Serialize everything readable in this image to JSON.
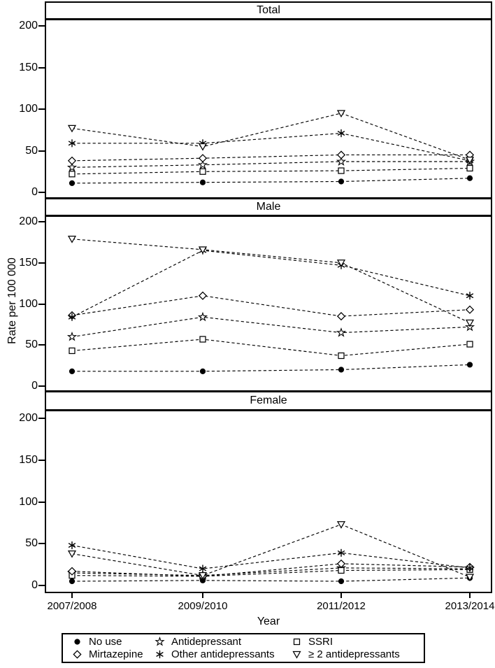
{
  "figure": {
    "ylabel": "Rate per 100 000",
    "xlabel": "Year",
    "background": "#ffffff",
    "line_color": "#000000",
    "line_style": "dashed"
  },
  "x_axis": {
    "label": "Year",
    "ticks": [
      "2007/2008",
      "2009/2010",
      "2011/2012",
      "2013/2014"
    ]
  },
  "chart_data": [
    {
      "type": "line",
      "title": "Total",
      "x": [
        "2007/2008",
        "2009/2010",
        "2011/2012",
        "2013/2014"
      ],
      "ylabel": "Rate per 100 000",
      "ylim": [
        0,
        210
      ],
      "yticks": [
        0,
        50,
        100,
        150,
        200
      ],
      "grid": false,
      "series": [
        {
          "name": "No use",
          "marker": "circle-filled",
          "values": [
            11,
            12,
            13,
            17
          ]
        },
        {
          "name": "Antidepressant",
          "marker": "star",
          "values": [
            30,
            33,
            37,
            37
          ]
        },
        {
          "name": "SSRI",
          "marker": "square",
          "values": [
            22,
            25,
            26,
            29
          ]
        },
        {
          "name": "Mirtazepine",
          "marker": "diamond",
          "values": [
            38,
            41,
            45,
            45
          ]
        },
        {
          "name": "Other antidepressants",
          "marker": "asterisk",
          "values": [
            59,
            59,
            71,
            38
          ]
        },
        {
          "name": "≥ 2 antidepressants",
          "marker": "triangle-down",
          "values": [
            77,
            55,
            95,
            39
          ]
        }
      ]
    },
    {
      "type": "line",
      "title": "Male",
      "x": [
        "2007/2008",
        "2009/2010",
        "2011/2012",
        "2013/2014"
      ],
      "ylabel": "Rate per 100 000",
      "ylim": [
        0,
        210
      ],
      "yticks": [
        0,
        50,
        100,
        150,
        200
      ],
      "grid": false,
      "series": [
        {
          "name": "No use",
          "marker": "circle-filled",
          "values": [
            18,
            18,
            20,
            26
          ]
        },
        {
          "name": "Antidepressant",
          "marker": "star",
          "values": [
            60,
            84,
            65,
            72
          ]
        },
        {
          "name": "SSRI",
          "marker": "square",
          "values": [
            43,
            57,
            37,
            51
          ]
        },
        {
          "name": "Mirtazepine",
          "marker": "diamond",
          "values": [
            86,
            110,
            85,
            93
          ]
        },
        {
          "name": "Other antidepressants",
          "marker": "asterisk",
          "values": [
            84,
            165,
            147,
            110
          ]
        },
        {
          "name": "≥ 2 antidepressants",
          "marker": "triangle-down",
          "values": [
            179,
            166,
            150,
            77
          ]
        }
      ]
    },
    {
      "type": "line",
      "title": "Female",
      "x": [
        "2007/2008",
        "2009/2010",
        "2011/2012",
        "2013/2014"
      ],
      "ylabel": "Rate per 100 000",
      "ylim": [
        0,
        210
      ],
      "yticks": [
        0,
        50,
        100,
        150,
        200
      ],
      "grid": false,
      "series": [
        {
          "name": "No use",
          "marker": "circle-filled",
          "values": [
            5,
            6,
            5,
            9
          ]
        },
        {
          "name": "Antidepressant",
          "marker": "star",
          "values": [
            15,
            12,
            21,
            20
          ]
        },
        {
          "name": "SSRI",
          "marker": "square",
          "values": [
            12,
            11,
            18,
            19
          ]
        },
        {
          "name": "Mirtazepine",
          "marker": "diamond",
          "values": [
            17,
            11,
            26,
            22
          ]
        },
        {
          "name": "Other antidepressants",
          "marker": "asterisk",
          "values": [
            48,
            20,
            39,
            21
          ]
        },
        {
          "name": "≥ 2 antidepressants",
          "marker": "triangle-down",
          "values": [
            38,
            12,
            73,
            10
          ]
        }
      ]
    }
  ],
  "legend": {
    "position": "bottom",
    "items": [
      {
        "marker": "circle-filled",
        "label": "No use"
      },
      {
        "marker": "diamond",
        "label": "Mirtazepine"
      },
      {
        "marker": "star",
        "label": "Antidepressant"
      },
      {
        "marker": "asterisk",
        "label": "Other antidepressants"
      },
      {
        "marker": "square",
        "label": "SSRI"
      },
      {
        "marker": "triangle-down",
        "label": "≥ 2 antidepressants"
      }
    ]
  }
}
